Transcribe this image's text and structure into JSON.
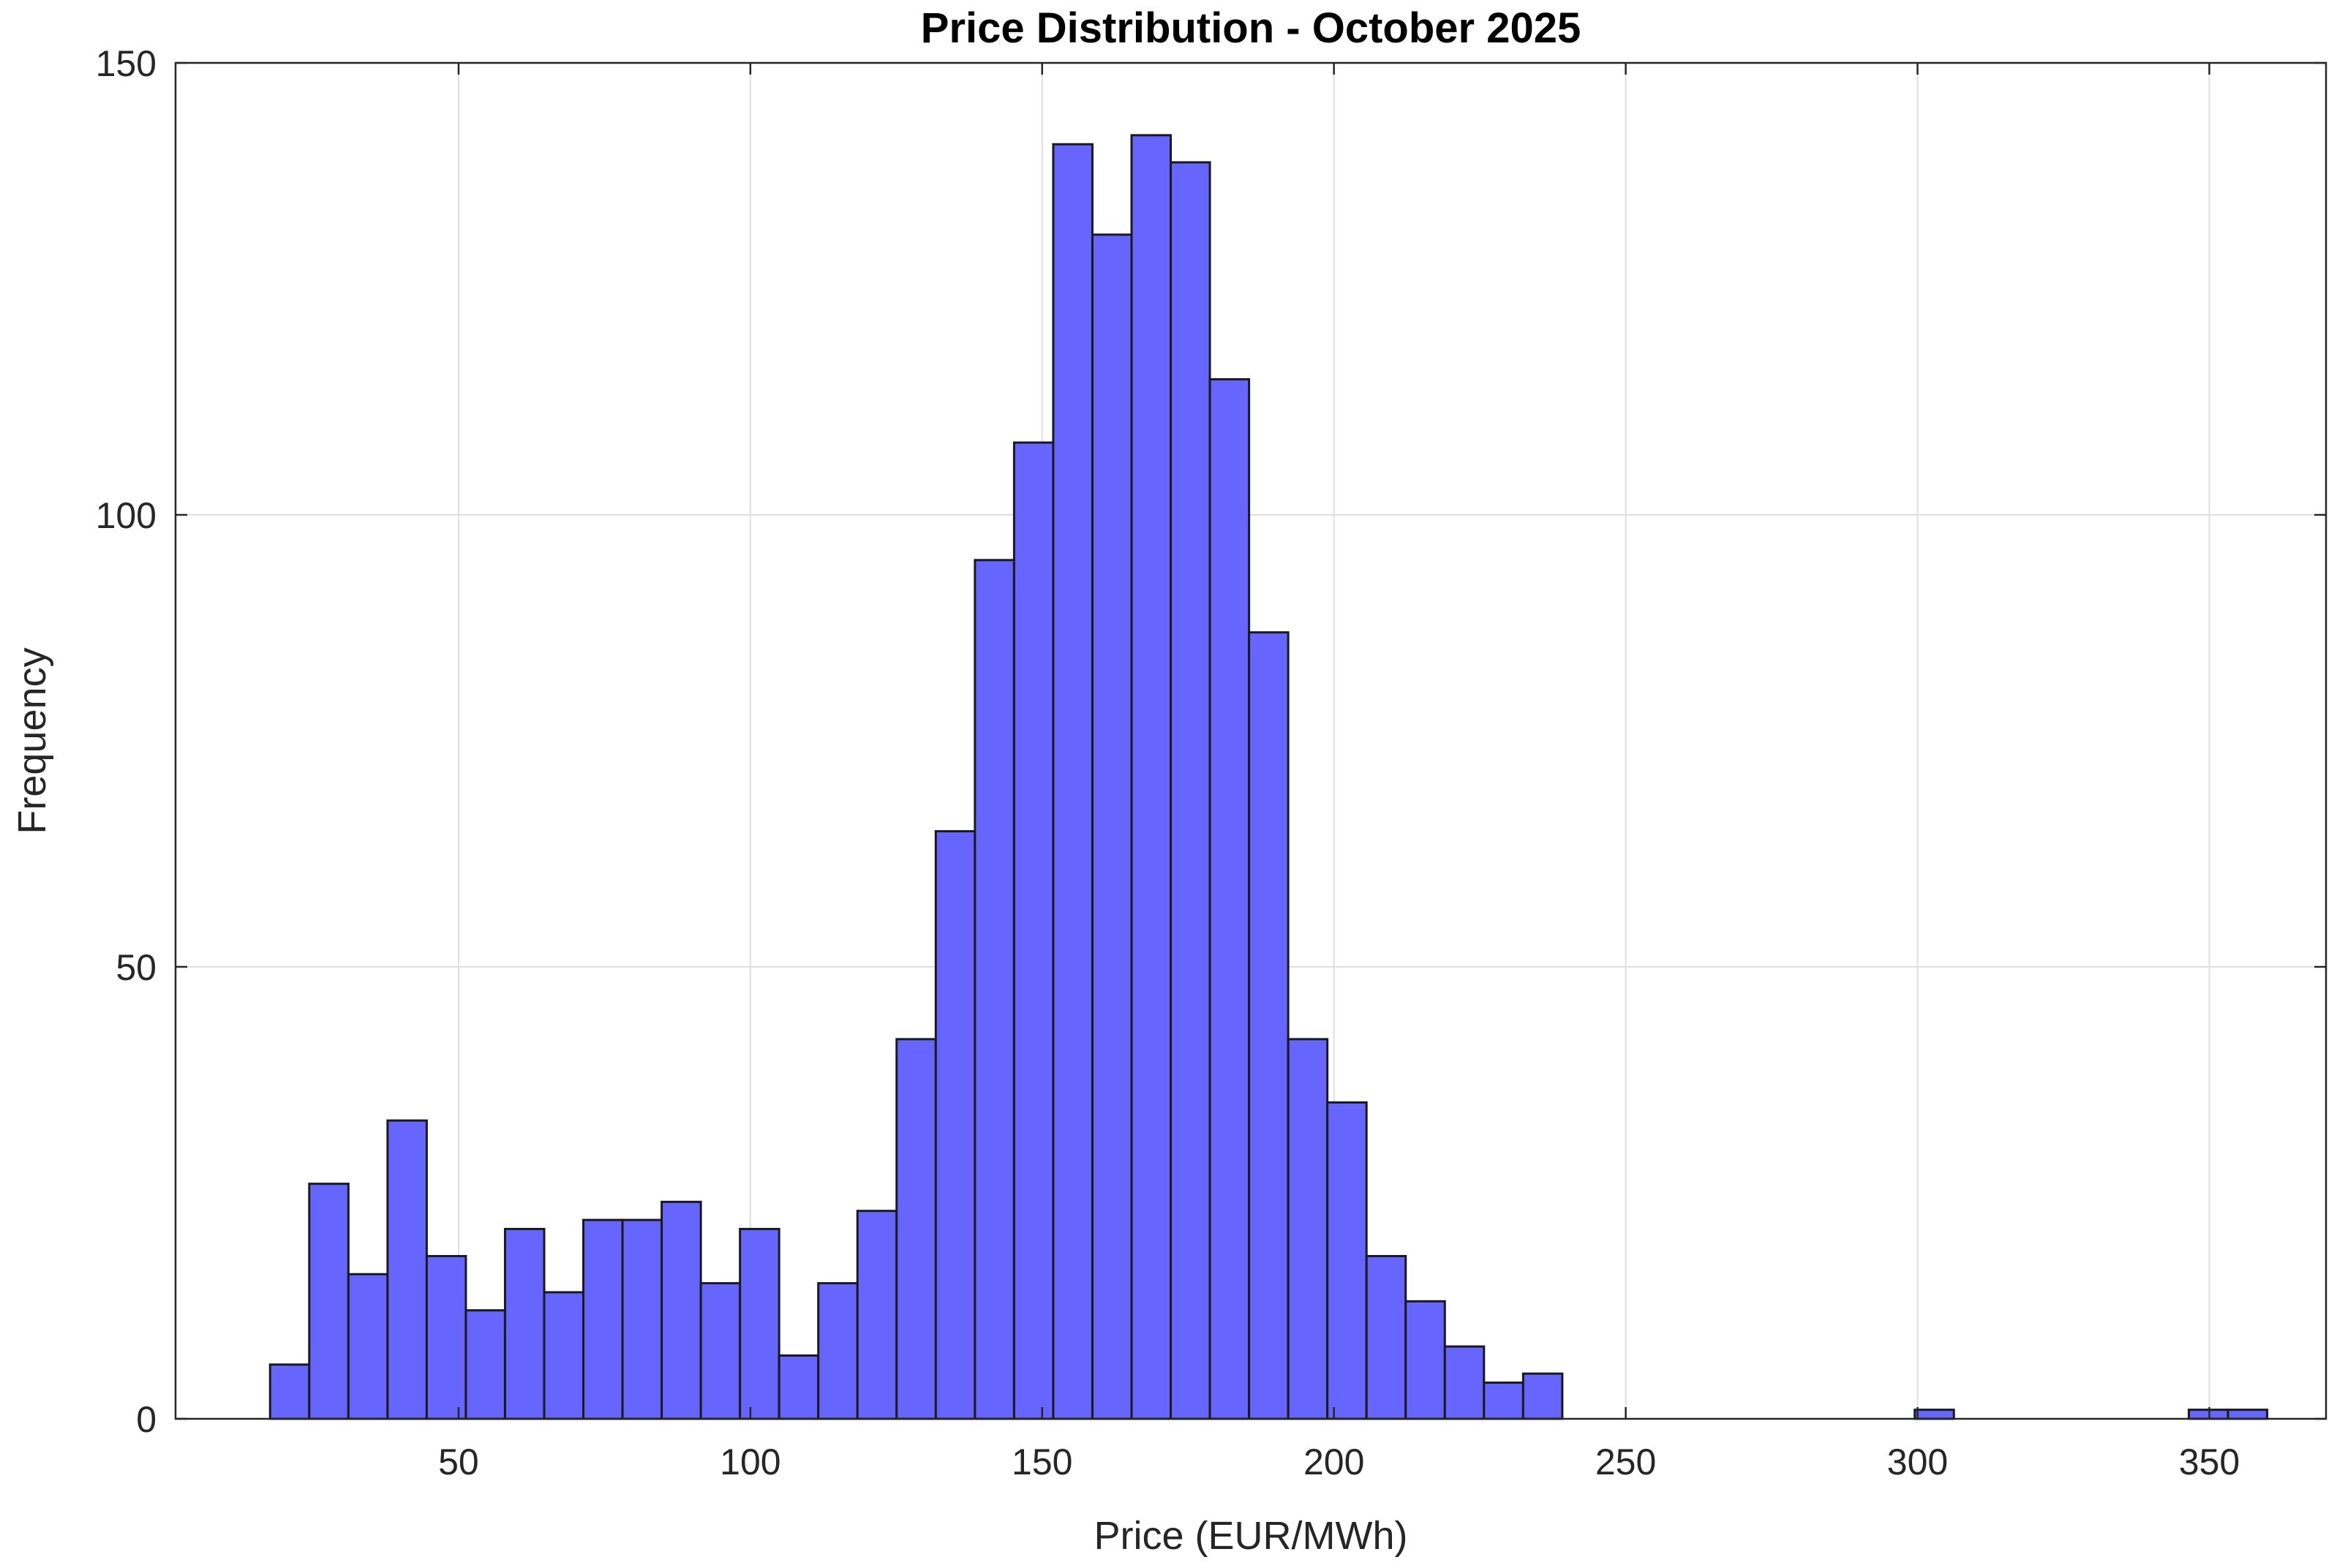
{
  "chart_data": {
    "type": "bar",
    "title": "Price Distribution - October 2025",
    "xlabel": "Price (EUR/MWh)",
    "ylabel": "Frequency",
    "xlim": [
      1.5,
      370
    ],
    "ylim": [
      0,
      150
    ],
    "xticks": [
      50,
      100,
      150,
      200,
      250,
      300,
      350
    ],
    "yticks": [
      0,
      50,
      100,
      150
    ],
    "grid": true,
    "bar_color": "#6666ff",
    "bar_edge_color": "#1a1a1a",
    "bin_width": 6.71,
    "bin_edges_start": 17.7,
    "values": [
      6,
      26,
      16,
      33,
      18,
      12,
      21,
      14,
      22,
      22,
      24,
      15,
      21,
      7,
      15,
      23,
      42,
      65,
      95,
      108,
      141,
      131,
      142,
      139,
      115,
      87,
      42,
      35,
      18,
      13,
      8,
      4,
      5,
      0,
      0,
      0,
      0,
      0,
      0,
      0,
      0,
      0,
      1,
      0,
      0,
      0,
      0,
      0,
      0,
      1,
      1
    ]
  }
}
